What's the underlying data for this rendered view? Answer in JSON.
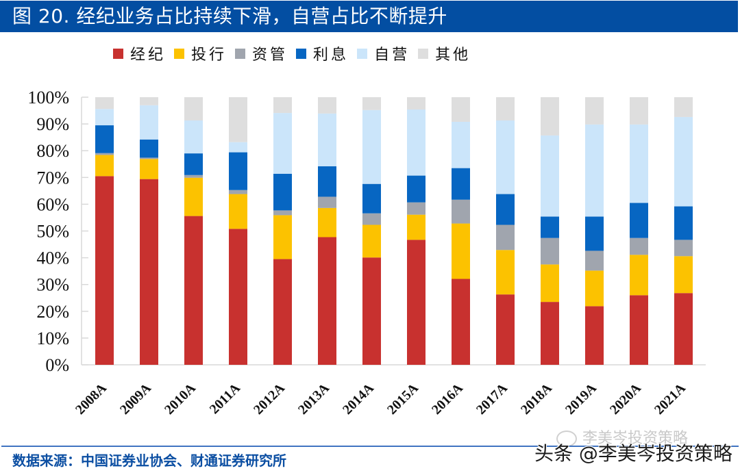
{
  "header": {
    "title": "图 20. 经纪业务占比持续下滑，自营占比不断提升"
  },
  "footer": {
    "source": "数据来源：中国证券业协会、财通证券研究所"
  },
  "watermark": {
    "text": "头条 @李美岑投资策略",
    "faint_text": "李美岑投资策略"
  },
  "colors": {
    "header_bg": "#034EA2",
    "经纪": "#C8312F",
    "投行": "#FCC200",
    "资管": "#A0A5AE",
    "利息": "#0766C2",
    "自营": "#CBE5FA",
    "其他": "#DEDEDE"
  },
  "chart_data": {
    "type": "bar",
    "stacked": true,
    "title": "经纪业务占比持续下滑，自营占比不断提升",
    "xlabel": "",
    "ylabel": "",
    "ylim": [
      0,
      100
    ],
    "y_ticks": [
      "0%",
      "10%",
      "20%",
      "30%",
      "40%",
      "50%",
      "60%",
      "70%",
      "80%",
      "90%",
      "100%"
    ],
    "legend_position": "top",
    "grid": false,
    "categories": [
      "2008A",
      "2009A",
      "2010A",
      "2011A",
      "2012A",
      "2013A",
      "2014A",
      "2015A",
      "2016A",
      "2017A",
      "2018A",
      "2019A",
      "2020A",
      "2021A"
    ],
    "series": [
      {
        "name": "经纪",
        "values": [
          70.5,
          69.4,
          55.6,
          50.8,
          39.5,
          47.7,
          40.1,
          46.7,
          32.1,
          26.3,
          23.5,
          21.9,
          26.0,
          26.8
        ]
      },
      {
        "name": "投行",
        "values": [
          7.9,
          7.5,
          14.3,
          13.0,
          16.4,
          10.9,
          12.2,
          9.4,
          20.7,
          16.6,
          14.0,
          13.3,
          15.1,
          13.8
        ]
      },
      {
        "name": "资管",
        "values": [
          0.7,
          0.5,
          1.0,
          1.5,
          1.8,
          4.2,
          4.3,
          4.6,
          8.9,
          9.4,
          9.9,
          7.4,
          6.3,
          6.1
        ]
      },
      {
        "name": "利息",
        "values": [
          10.4,
          6.8,
          8.1,
          14.1,
          13.7,
          11.4,
          11.0,
          10.0,
          11.8,
          11.5,
          8.0,
          12.8,
          13.1,
          12.5
        ]
      },
      {
        "name": "自营",
        "values": [
          6.1,
          12.8,
          12.3,
          3.8,
          22.7,
          19.7,
          27.6,
          24.7,
          17.3,
          27.5,
          30.3,
          34.4,
          29.3,
          33.4
        ]
      },
      {
        "name": "其他",
        "values": [
          4.4,
          3.0,
          8.7,
          16.8,
          5.9,
          6.1,
          4.8,
          4.6,
          9.2,
          8.7,
          14.3,
          10.2,
          10.2,
          7.4
        ]
      }
    ]
  }
}
